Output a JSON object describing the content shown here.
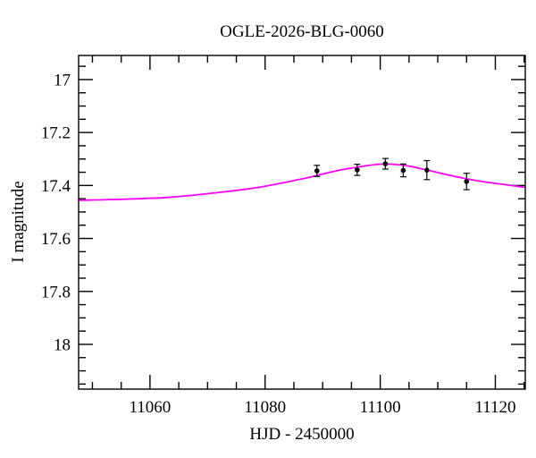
{
  "figure": {
    "background_color": "#ffffff",
    "frame_color": "#000000",
    "text_color": "#000000"
  },
  "chart_data": {
    "type": "scatter",
    "title": "OGLE-2026-BLG-0060",
    "xlabel": "HJD - 2450000",
    "ylabel": "I magnitude",
    "xlim": [
      11047.6,
      11125.2
    ],
    "ylim": [
      18.169,
      16.909
    ],
    "y_axis_inverted": true,
    "grid": false,
    "legend": "none",
    "x_axis": {
      "major_ticks": [
        11060,
        11080,
        11100,
        11120
      ],
      "major_labels": [
        "11060",
        "11080",
        "11100",
        "11120"
      ],
      "minor_tick_step": 5
    },
    "y_axis": {
      "major_ticks": [
        17,
        17.2,
        17.4,
        17.6,
        17.8,
        18
      ],
      "major_labels": [
        "17",
        "17.2",
        "17.4",
        "17.6",
        "17.8",
        "18"
      ],
      "minor_tick_step": 0.05
    },
    "series": [
      {
        "name": "ogle-data-points",
        "kind": "scatter",
        "color": "#000000",
        "marker": "filled-circle",
        "points": [
          {
            "hjd": 11089.0,
            "mag": 17.345,
            "err": 0.021
          },
          {
            "hjd": 11096.0,
            "mag": 17.341,
            "err": 0.021
          },
          {
            "hjd": 11100.9,
            "mag": 17.318,
            "err": 0.02
          },
          {
            "hjd": 11104.0,
            "mag": 17.343,
            "err": 0.024
          },
          {
            "hjd": 11108.1,
            "mag": 17.342,
            "err": 0.036
          },
          {
            "hjd": 11115.0,
            "mag": 17.385,
            "err": 0.031
          }
        ]
      },
      {
        "name": "microlensing-model-curve",
        "kind": "line",
        "color": "#ff00ff",
        "points": [
          [
            11047.6,
            17.456
          ],
          [
            11055.3,
            17.452
          ],
          [
            11063.1,
            17.445
          ],
          [
            11070.9,
            17.429
          ],
          [
            11078.6,
            17.408
          ],
          [
            11086.4,
            17.375
          ],
          [
            11089.8,
            17.358
          ],
          [
            11092.9,
            17.342
          ],
          [
            11096.0,
            17.331
          ],
          [
            11098.3,
            17.323
          ],
          [
            11100.5,
            17.319
          ],
          [
            11102.9,
            17.321
          ],
          [
            11105.3,
            17.328
          ],
          [
            11107.6,
            17.339
          ],
          [
            11109.9,
            17.351
          ],
          [
            11112.2,
            17.362
          ],
          [
            11114.6,
            17.373
          ],
          [
            11117.7,
            17.385
          ],
          [
            11120.8,
            17.394
          ],
          [
            11123.1,
            17.401
          ],
          [
            11125.2,
            17.407
          ]
        ]
      }
    ]
  }
}
